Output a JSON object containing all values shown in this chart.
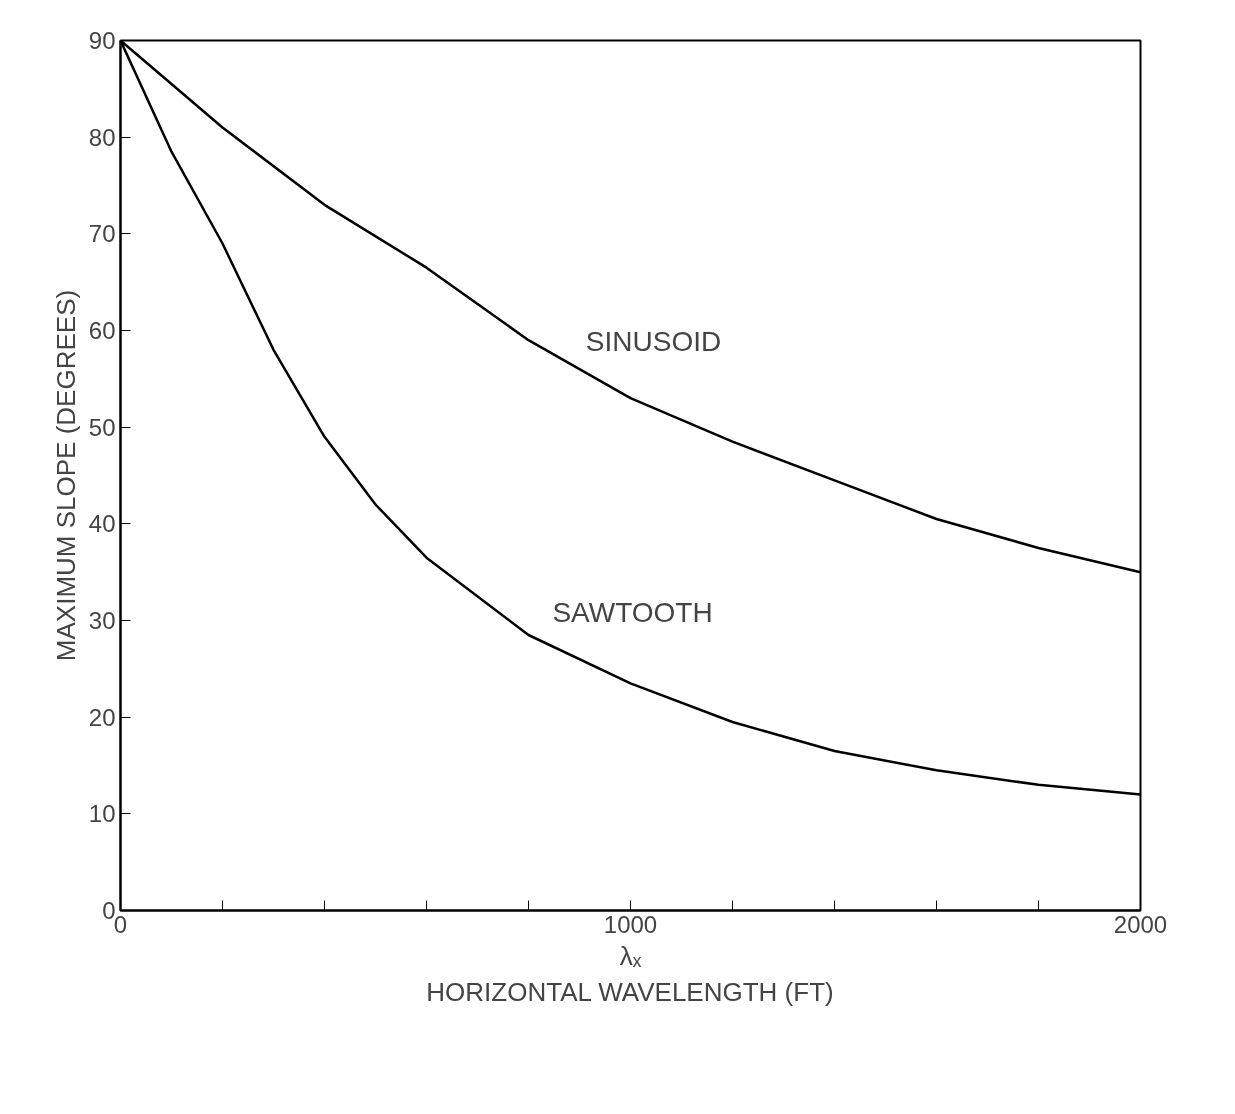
{
  "chart_data": {
    "type": "line",
    "xlabel": "λₓ\nHORIZONTAL WAVELENGTH (FT)",
    "ylabel": "MAXIMUM SLOPE (DEGREES)",
    "xlim": [
      0,
      2000
    ],
    "ylim": [
      0,
      90
    ],
    "xticks": [
      0,
      {
        "value": 200,
        "label": null
      },
      {
        "value": 400,
        "label": null
      },
      {
        "value": 600,
        "label": null
      },
      {
        "value": 800,
        "label": null
      },
      1000,
      {
        "value": 1200,
        "label": null
      },
      {
        "value": 1400,
        "label": null
      },
      {
        "value": 1600,
        "label": null
      },
      {
        "value": 1800,
        "label": null
      },
      2000
    ],
    "yticks": [
      0,
      10,
      20,
      30,
      40,
      50,
      60,
      70,
      80,
      90
    ],
    "grid": false,
    "marker": "none",
    "line_style": "solid",
    "series": [
      {
        "color": "#000000",
        "x": [
          0,
          200,
          400,
          600,
          800,
          1000,
          1200,
          1400,
          1600,
          1800,
          2000
        ],
        "values": [
          90,
          81,
          73,
          66.5,
          59,
          53,
          48.5,
          44.5,
          40.5,
          37.5,
          35
        ]
      },
      {
        "color": "#000000",
        "x": [
          0,
          100,
          200,
          300,
          400,
          500,
          600,
          800,
          1000,
          1200,
          1400,
          1600,
          1800,
          2000
        ],
        "values": [
          90,
          78.5,
          69,
          58,
          49,
          42,
          36.5,
          28.5,
          23.5,
          19.5,
          16.5,
          14.5,
          13,
          12
        ]
      }
    ],
    "annotations": [
      "SINUSOID",
      "SAWTOOTH"
    ]
  }
}
